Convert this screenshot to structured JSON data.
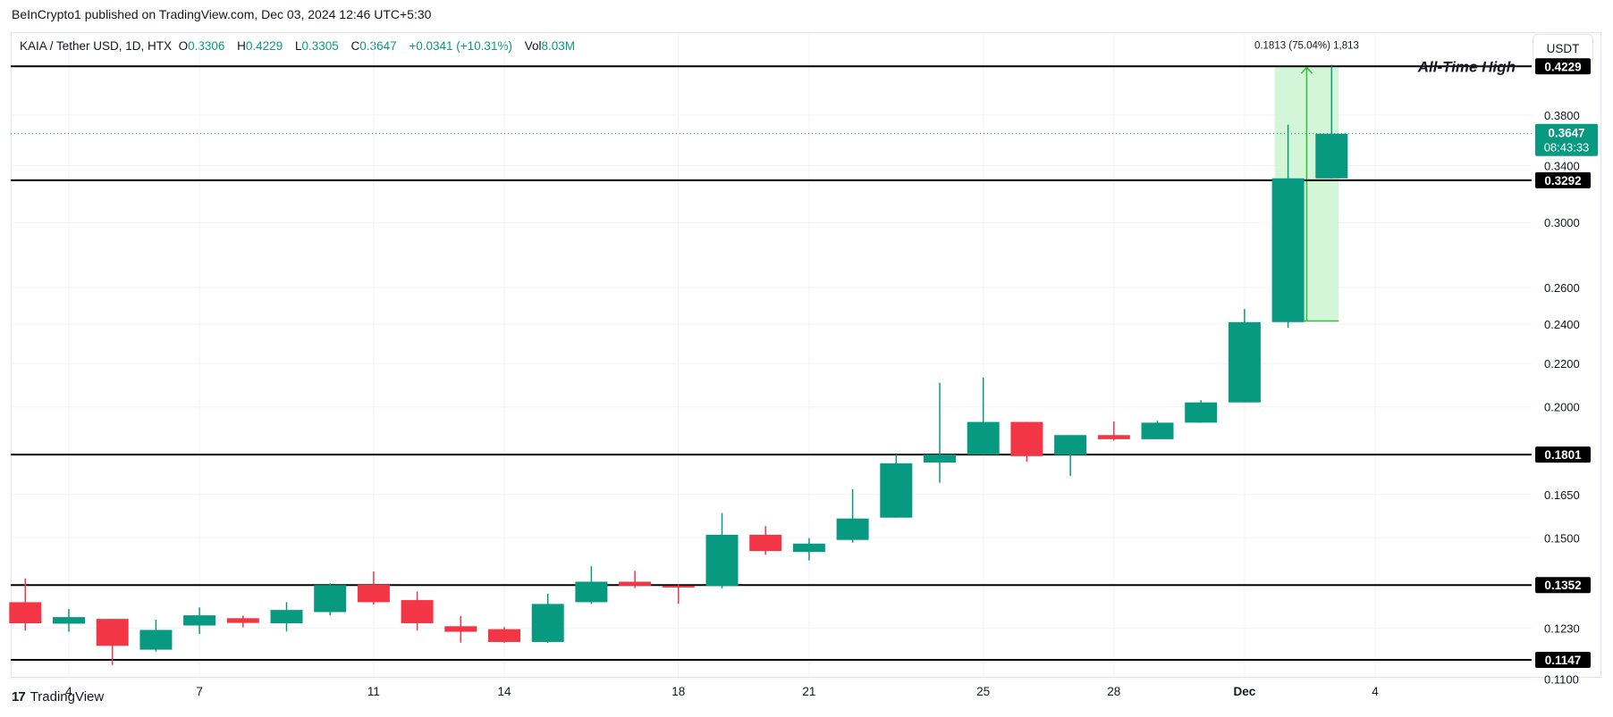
{
  "publisher_line": "BeInCrypto1 published on TradingView.com, Dec 03, 2024 12:46 UTC+5:30",
  "legend": {
    "symbol": "KAIA / Tether USD, 1D, HTX",
    "open_label": "O",
    "open": "0.3306",
    "high_label": "H",
    "high": "0.4229",
    "low_label": "L",
    "low": "0.3305",
    "close_label": "C",
    "close": "0.3647",
    "change": "+0.0341 (+10.31%)",
    "vol_label": "Vol",
    "vol": "8.03M"
  },
  "currency_button": "USDT",
  "brand": "TradingView",
  "chart_data": {
    "type": "candlestick",
    "title": "KAIA / Tether USD, 1D, HTX",
    "y_scale": "log",
    "ylim": [
      0.1105,
      0.455
    ],
    "y_ticks": [
      "0.3800",
      "0.3400",
      "0.3000",
      "0.2600",
      "0.2400",
      "0.2200",
      "0.2000",
      "0.1650",
      "0.1500",
      "0.1230",
      "0.1100"
    ],
    "x_ticks": [
      {
        "day": 4,
        "label": "4"
      },
      {
        "day": 7,
        "label": "7"
      },
      {
        "day": 11,
        "label": "11"
      },
      {
        "day": 14,
        "label": "14"
      },
      {
        "day": 18,
        "label": "18"
      },
      {
        "day": 21,
        "label": "21"
      },
      {
        "day": 25,
        "label": "25"
      },
      {
        "day": 28,
        "label": "28"
      },
      {
        "day": 31,
        "label": "Dec"
      },
      {
        "day": 34,
        "label": "4"
      }
    ],
    "candles": [
      {
        "day": 3,
        "o": 0.1302,
        "h": 0.1372,
        "l": 0.1223,
        "c": 0.1243
      },
      {
        "day": 4,
        "o": 0.1242,
        "h": 0.1283,
        "l": 0.122,
        "c": 0.126
      },
      {
        "day": 5,
        "o": 0.1255,
        "h": 0.1255,
        "l": 0.1134,
        "c": 0.1183
      },
      {
        "day": 6,
        "o": 0.1173,
        "h": 0.1253,
        "l": 0.1168,
        "c": 0.1225
      },
      {
        "day": 7,
        "o": 0.1237,
        "h": 0.1287,
        "l": 0.1214,
        "c": 0.1265
      },
      {
        "day": 8,
        "o": 0.1257,
        "h": 0.1264,
        "l": 0.1232,
        "c": 0.1244
      },
      {
        "day": 9,
        "o": 0.1243,
        "h": 0.1302,
        "l": 0.1221,
        "c": 0.128
      },
      {
        "day": 10,
        "o": 0.1274,
        "h": 0.1357,
        "l": 0.1265,
        "c": 0.1352
      },
      {
        "day": 11,
        "o": 0.1353,
        "h": 0.1393,
        "l": 0.1295,
        "c": 0.1302
      },
      {
        "day": 12,
        "o": 0.1308,
        "h": 0.1333,
        "l": 0.1223,
        "c": 0.1243
      },
      {
        "day": 13,
        "o": 0.1235,
        "h": 0.1263,
        "l": 0.1191,
        "c": 0.122
      },
      {
        "day": 14,
        "o": 0.1227,
        "h": 0.1233,
        "l": 0.1191,
        "c": 0.1193
      },
      {
        "day": 15,
        "o": 0.1193,
        "h": 0.1327,
        "l": 0.1191,
        "c": 0.1297
      },
      {
        "day": 16,
        "o": 0.1302,
        "h": 0.1409,
        "l": 0.1297,
        "c": 0.1362
      },
      {
        "day": 17,
        "o": 0.1362,
        "h": 0.1395,
        "l": 0.1343,
        "c": 0.135
      },
      {
        "day": 18,
        "o": 0.135,
        "h": 0.1353,
        "l": 0.1298,
        "c": 0.1349
      },
      {
        "day": 19,
        "o": 0.1349,
        "h": 0.1584,
        "l": 0.1342,
        "c": 0.151
      },
      {
        "day": 20,
        "o": 0.151,
        "h": 0.1539,
        "l": 0.1445,
        "c": 0.1457
      },
      {
        "day": 21,
        "o": 0.1454,
        "h": 0.1499,
        "l": 0.1427,
        "c": 0.1481
      },
      {
        "day": 22,
        "o": 0.1493,
        "h": 0.1669,
        "l": 0.1484,
        "c": 0.1565
      },
      {
        "day": 23,
        "o": 0.1568,
        "h": 0.1802,
        "l": 0.1568,
        "c": 0.1767
      },
      {
        "day": 24,
        "o": 0.177,
        "h": 0.2109,
        "l": 0.1693,
        "c": 0.1801
      },
      {
        "day": 25,
        "o": 0.1801,
        "h": 0.2133,
        "l": 0.1801,
        "c": 0.1935
      },
      {
        "day": 26,
        "o": 0.1935,
        "h": 0.1935,
        "l": 0.1773,
        "c": 0.1795
      },
      {
        "day": 27,
        "o": 0.18,
        "h": 0.188,
        "l": 0.1719,
        "c": 0.188
      },
      {
        "day": 28,
        "o": 0.188,
        "h": 0.1937,
        "l": 0.1857,
        "c": 0.1863
      },
      {
        "day": 29,
        "o": 0.1863,
        "h": 0.194,
        "l": 0.1863,
        "c": 0.1932
      },
      {
        "day": 30,
        "o": 0.1932,
        "h": 0.203,
        "l": 0.1932,
        "c": 0.202
      },
      {
        "day": 31,
        "o": 0.202,
        "h": 0.2481,
        "l": 0.202,
        "c": 0.241
      },
      {
        "day": 32,
        "o": 0.241,
        "h": 0.372,
        "l": 0.238,
        "c": 0.3306
      },
      {
        "day": 33,
        "o": 0.3306,
        "h": 0.4229,
        "l": 0.3305,
        "c": 0.3647
      }
    ],
    "levels": [
      {
        "value": 0.4229,
        "label": "0.4229"
      },
      {
        "value": 0.3292,
        "label": "0.3292"
      },
      {
        "value": 0.1801,
        "label": "0.1801"
      },
      {
        "value": 0.1352,
        "label": "0.1352"
      },
      {
        "value": 0.1147,
        "label": "0.1147"
      }
    ],
    "annotation": "All-Time High",
    "current_price": {
      "value": 0.3647,
      "label": "0.3647",
      "countdown": "08:43:33"
    },
    "measure": {
      "from": 0.2416,
      "to": 0.4229,
      "day_start": 32,
      "day_end": 33,
      "label": "0.1813 (75.04%) 1,813"
    },
    "colors": {
      "up": "#089981",
      "down": "#f23645",
      "measure_fill": "#ccf5d1",
      "measure_line": "#2fbf3a",
      "level": "#000000"
    }
  }
}
